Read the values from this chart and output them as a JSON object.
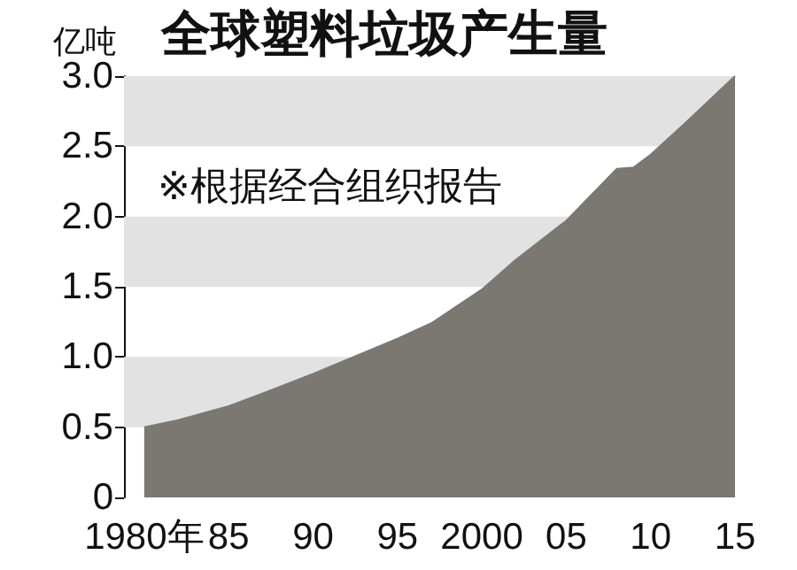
{
  "chart_data": {
    "type": "area",
    "title": "全球塑料垃圾产生量",
    "ylabel": "亿吨",
    "annotations": [
      "※根据经合组织报告"
    ],
    "x": [
      1980,
      1982,
      1985,
      1987,
      1990,
      1995,
      1997,
      2000,
      2002,
      2005,
      2008,
      2009,
      2010,
      2012,
      2015
    ],
    "series": [
      {
        "color": "#7b7872",
        "values": [
          0.5,
          0.55,
          0.65,
          0.74,
          0.88,
          1.13,
          1.24,
          1.48,
          1.69,
          1.97,
          2.34,
          2.35,
          2.44,
          2.66,
          3.0
        ]
      }
    ],
    "xlim": [
      1978.8,
      2015
    ],
    "xticks": [
      {
        "value": 1980,
        "label": "1980年"
      },
      {
        "value": 1985,
        "label": "85"
      },
      {
        "value": 1990,
        "label": "90"
      },
      {
        "value": 1995,
        "label": "95"
      },
      {
        "value": 2000,
        "label": "2000"
      },
      {
        "value": 2005,
        "label": "05"
      },
      {
        "value": 2010,
        "label": "10"
      },
      {
        "value": 2015,
        "label": "15"
      }
    ],
    "ylim": [
      0,
      3
    ],
    "yticks": [
      0,
      {
        "value": 0.5,
        "label": "0.5"
      },
      {
        "value": 1,
        "label": "1.0"
      },
      {
        "value": 1.5,
        "label": "1.5"
      },
      {
        "value": 2,
        "label": "2.0"
      },
      {
        "value": 2.5,
        "label": "2.5"
      },
      {
        "value": 3,
        "label": "3.0"
      }
    ],
    "bands": [
      {
        "axis": "y",
        "from": 0.5,
        "to": 1,
        "color": "#e2e2e2"
      },
      {
        "axis": "y",
        "from": 1.5,
        "to": 2,
        "color": "#e2e2e2"
      },
      {
        "axis": "y",
        "from": 2.5,
        "to": 3,
        "color": "#e2e2e2"
      }
    ]
  }
}
